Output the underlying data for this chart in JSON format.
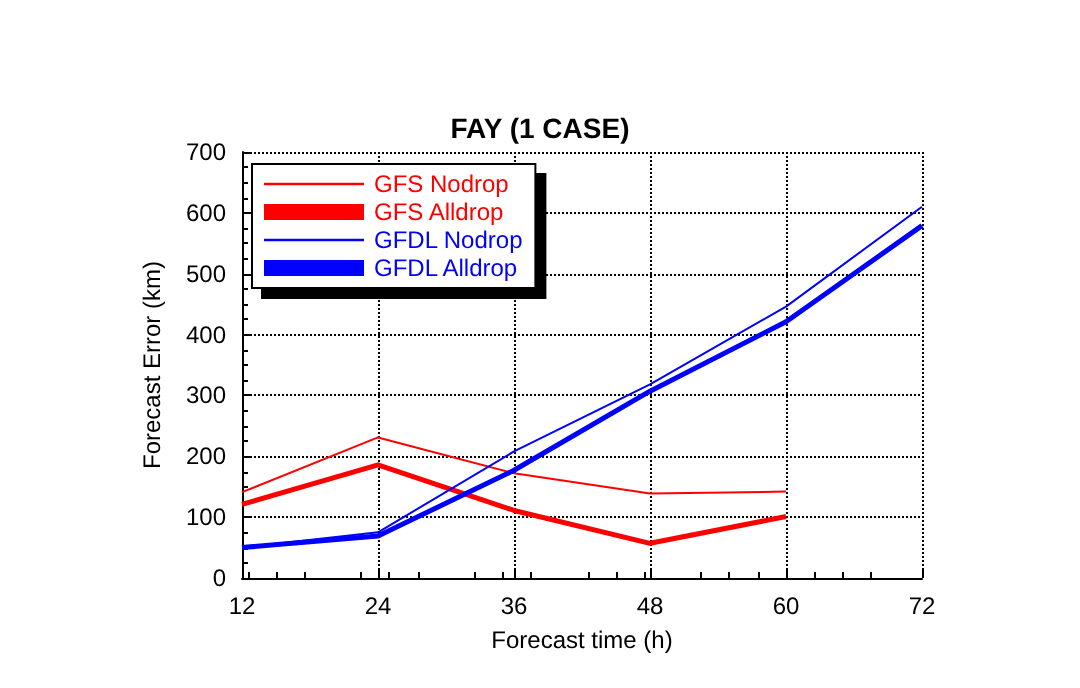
{
  "chart_data": {
    "type": "line",
    "title": "FAY (1 CASE)",
    "xlabel": "Forecast time (h)",
    "ylabel": "Forecast Error (km)",
    "x": [
      12,
      24,
      36,
      48,
      60,
      72
    ],
    "series": [
      {
        "name": "GFS Nodrop",
        "color": "#ff0000",
        "values": [
          141,
          231,
          172,
          139,
          142,
          null
        ]
      },
      {
        "name": "GFS Alldrop",
        "color": "#ff0000",
        "values": [
          121,
          186,
          111,
          57,
          101,
          null
        ]
      },
      {
        "name": "GFDL Nodrop",
        "color": "#0000ff",
        "values": [
          50,
          75,
          208,
          318,
          446,
          610
        ]
      },
      {
        "name": "GFDL Alldrop",
        "color": "#0000ff",
        "values": [
          50,
          69,
          177,
          307,
          421,
          579
        ]
      }
    ],
    "xlim": [
      12,
      72
    ],
    "xticks": [
      12,
      24,
      36,
      48,
      60,
      72
    ],
    "ylim": [
      0,
      700
    ],
    "yticks": [
      0,
      100,
      200,
      300,
      400,
      500,
      600,
      700
    ],
    "grid": true,
    "legend": "top left",
    "marker": "none",
    "line_style": "solid"
  }
}
